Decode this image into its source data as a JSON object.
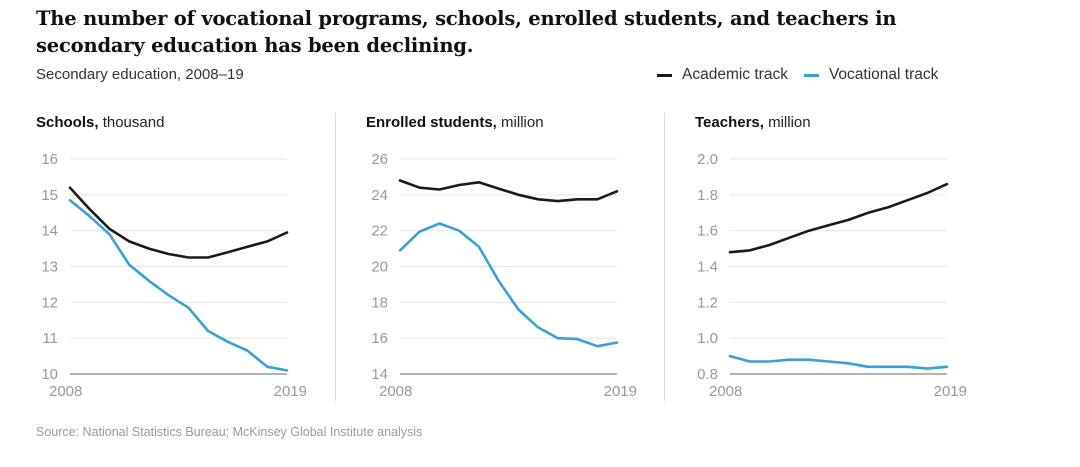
{
  "title": "The number of vocational programs, schools, enrolled students, and teachers in secondary education has been declining.",
  "subtitle": "Secondary education, 2008–19",
  "legend": [
    {
      "label": "Academic track",
      "color": "#1a1a1a"
    },
    {
      "label": "Vocational track",
      "color": "#3b9fd8"
    }
  ],
  "source": "Source: National Statistics Bureau; McKinsey Global Institute analysis",
  "chart_data": [
    {
      "type": "line",
      "title_bold": "Schools,",
      "title_unit": "thousand",
      "x": [
        2008,
        2009,
        2010,
        2011,
        2012,
        2013,
        2014,
        2015,
        2016,
        2017,
        2018,
        2019
      ],
      "x_tick_labels": [
        "2008",
        "2019"
      ],
      "ylim": [
        10,
        16
      ],
      "y_ticks": [
        10,
        11,
        12,
        13,
        14,
        15,
        16
      ],
      "y_tick_labels": [
        "10",
        "11",
        "12",
        "13",
        "14",
        "15",
        "16"
      ],
      "grid": true,
      "series": [
        {
          "name": "Academic track",
          "color": "#1a1a1a",
          "values": [
            15.2,
            14.6,
            14.05,
            13.7,
            13.5,
            13.35,
            13.25,
            13.25,
            13.4,
            13.55,
            13.7,
            13.95
          ]
        },
        {
          "name": "Vocational track",
          "color": "#3b9fd8",
          "values": [
            14.85,
            14.4,
            13.9,
            13.05,
            12.6,
            12.2,
            11.85,
            11.2,
            10.9,
            10.65,
            10.2,
            10.1
          ]
        }
      ]
    },
    {
      "type": "line",
      "title_bold": "Enrolled students,",
      "title_unit": "million",
      "x": [
        2008,
        2009,
        2010,
        2011,
        2012,
        2013,
        2014,
        2015,
        2016,
        2017,
        2018,
        2019
      ],
      "x_tick_labels": [
        "2008",
        "2019"
      ],
      "ylim": [
        14,
        26
      ],
      "y_ticks": [
        14,
        16,
        18,
        20,
        22,
        24,
        26
      ],
      "y_tick_labels": [
        "14",
        "16",
        "18",
        "20",
        "22",
        "24",
        "26"
      ],
      "grid": true,
      "series": [
        {
          "name": "Academic track",
          "color": "#1a1a1a",
          "values": [
            24.8,
            24.4,
            24.3,
            24.55,
            24.7,
            24.35,
            24.0,
            23.75,
            23.65,
            23.75,
            23.75,
            24.2
          ]
        },
        {
          "name": "Vocational track",
          "color": "#3b9fd8",
          "values": [
            20.9,
            21.95,
            22.4,
            22.0,
            21.1,
            19.2,
            17.6,
            16.6,
            16.0,
            15.95,
            15.55,
            15.75
          ]
        }
      ]
    },
    {
      "type": "line",
      "title_bold": "Teachers,",
      "title_unit": "million",
      "x": [
        2008,
        2009,
        2010,
        2011,
        2012,
        2013,
        2014,
        2015,
        2016,
        2017,
        2018,
        2019
      ],
      "x_tick_labels": [
        "2008",
        "2019"
      ],
      "ylim": [
        0.8,
        2.0
      ],
      "y_ticks": [
        0.8,
        1.0,
        1.2,
        1.4,
        1.6,
        1.8,
        2.0
      ],
      "y_tick_labels": [
        "0.8",
        "1.0",
        "1.2",
        "1.4",
        "1.6",
        "1.8",
        "2.0"
      ],
      "grid": true,
      "series": [
        {
          "name": "Academic track",
          "color": "#1a1a1a",
          "values": [
            1.48,
            1.49,
            1.52,
            1.56,
            1.6,
            1.63,
            1.66,
            1.7,
            1.73,
            1.77,
            1.81,
            1.86
          ]
        },
        {
          "name": "Vocational track",
          "color": "#3b9fd8",
          "values": [
            0.9,
            0.87,
            0.87,
            0.88,
            0.88,
            0.87,
            0.86,
            0.84,
            0.84,
            0.84,
            0.83,
            0.84
          ]
        }
      ]
    }
  ]
}
